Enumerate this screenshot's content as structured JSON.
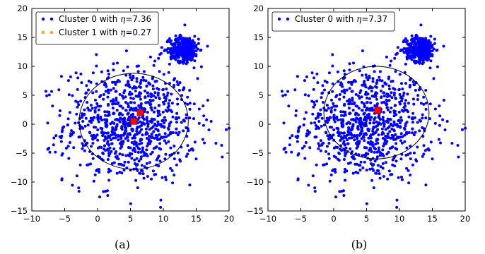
{
  "chart_data": [
    {
      "type": "scatter",
      "panel_label": "(a)",
      "xlim": [
        -10,
        20
      ],
      "ylim": [
        -15,
        20
      ],
      "x_ticks": [
        "−10",
        "−5",
        "0",
        "5",
        "10",
        "15",
        "20"
      ],
      "y_ticks": [
        "−15",
        "−10",
        "−5",
        "0",
        "5",
        "10",
        "15",
        "20"
      ],
      "legend_position": "top-left",
      "grid": false,
      "series": [
        {
          "name": "Cluster 0 with",
          "eta_symbol": "η",
          "eta_value": "=7.36",
          "color": "#0000ff",
          "marker": "dot",
          "points": "large background cluster near (5, 0) plus dense cluster near (13, 13)"
        },
        {
          "name": "Cluster 1 with",
          "eta_symbol": "η",
          "eta_value": "=0.27",
          "color": "#ffa500",
          "marker": "dot"
        }
      ],
      "clusters": [
        {
          "center": [
            5,
            0
          ],
          "spread": 5.0,
          "count": 900
        },
        {
          "center": [
            13.2,
            13.0
          ],
          "spread": 1.1,
          "count": 360
        }
      ],
      "outliers": [
        [
          18,
          -3.3
        ],
        [
          1.5,
          -11.5
        ],
        [
          -3,
          8
        ],
        [
          15,
          -6
        ],
        [
          -5.5,
          -3
        ]
      ],
      "circle": {
        "center": [
          5.5,
          0.5
        ],
        "radius": 8.3,
        "color": "#000000"
      },
      "centers": [
        [
          6.5,
          2
        ],
        [
          5.5,
          0.5
        ]
      ],
      "center_color": "#ff0000"
    },
    {
      "type": "scatter",
      "panel_label": "(b)",
      "xlim": [
        -10,
        20
      ],
      "ylim": [
        -15,
        20
      ],
      "x_ticks": [
        "−10",
        "−5",
        "0",
        "5",
        "10",
        "15",
        "20"
      ],
      "y_ticks": [
        "−15",
        "−10",
        "−5",
        "0",
        "5",
        "10",
        "15",
        "20"
      ],
      "legend_position": "top-left",
      "grid": false,
      "series": [
        {
          "name": "Cluster 0 with",
          "eta_symbol": "η",
          "eta_value": "=7.37",
          "color": "#0000ff",
          "marker": "dot"
        }
      ],
      "clusters": [
        {
          "center": [
            5,
            0
          ],
          "spread": 5.0,
          "count": 900
        },
        {
          "center": [
            13.2,
            13.0
          ],
          "spread": 1.1,
          "count": 360
        }
      ],
      "outliers": [
        [
          18,
          -3.3
        ],
        [
          1.5,
          -11.5
        ],
        [
          -3,
          8
        ],
        [
          15,
          -6
        ],
        [
          -5.5,
          -3
        ]
      ],
      "circle": {
        "center": [
          6.5,
          2
        ],
        "radius": 8.0,
        "color": "#000000"
      },
      "centers": [
        [
          6.7,
          2.4
        ]
      ],
      "center_color": "#ff0000"
    }
  ]
}
